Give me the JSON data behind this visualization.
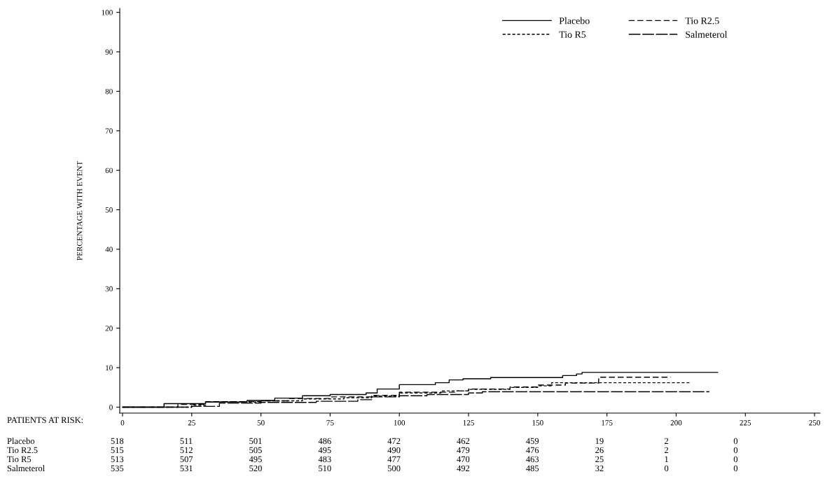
{
  "chart_data": {
    "type": "step",
    "ylabel": "PERCENTAGE WITH EVENT",
    "xlim": [
      -1,
      252
    ],
    "xticks": [
      0,
      25,
      50,
      75,
      100,
      125,
      150,
      175,
      200,
      225,
      250
    ],
    "ylim": [
      -1.5,
      101
    ],
    "yticks": [
      0,
      10,
      20,
      30,
      40,
      50,
      60,
      70,
      80,
      90,
      100
    ],
    "grid": false,
    "legend": "top right",
    "marker": "none",
    "series": [
      {
        "name": "Placebo",
        "color": "#000000",
        "line_style": "solid",
        "x": [
          0,
          15,
          30,
          45,
          55,
          65,
          75,
          88,
          92,
          100,
          113,
          118,
          123,
          133,
          159,
          164,
          166,
          215
        ],
        "values": [
          0,
          0.9,
          1.3,
          1.7,
          2.3,
          2.9,
          3.2,
          3.6,
          4.6,
          5.7,
          6.2,
          6.9,
          7.2,
          7.5,
          8.0,
          8.4,
          8.8,
          8.8
        ]
      },
      {
        "name": "Tio R2.5",
        "color": "#000000",
        "line_style": "dashed",
        "x": [
          0,
          20,
          30,
          50,
          60,
          75,
          90,
          100,
          120,
          125,
          140,
          150,
          160,
          172,
          198
        ],
        "values": [
          0,
          0.7,
          1.4,
          1.6,
          2.2,
          2.6,
          3.0,
          3.8,
          4.1,
          4.6,
          5.1,
          5.6,
          6.1,
          7.6,
          7.6
        ]
      },
      {
        "name": "Tio R5",
        "color": "#000000",
        "line_style": "dotted",
        "x": [
          0,
          25,
          30,
          50,
          65,
          80,
          90,
          100,
          115,
          125,
          140,
          150,
          155,
          205
        ],
        "values": [
          0,
          0.5,
          1.3,
          1.6,
          2.1,
          2.4,
          2.8,
          3.6,
          4.1,
          4.5,
          5.0,
          5.4,
          6.2,
          6.2
        ]
      },
      {
        "name": "Salmeterol",
        "color": "#000000",
        "line_style": "long_dashed",
        "x": [
          0,
          25,
          35,
          50,
          70,
          85,
          90,
          100,
          110,
          125,
          130,
          212
        ],
        "values": [
          0,
          0.2,
          1.0,
          1.2,
          1.5,
          1.9,
          2.6,
          2.9,
          3.2,
          3.6,
          3.9,
          3.9
        ]
      }
    ],
    "annotations": [
      "PATIENTS AT RISK:",
      "Placebo",
      "518",
      "511",
      "501",
      "486",
      "472",
      "462",
      "459",
      "19",
      "2",
      "0",
      "Tio R2.5",
      "515",
      "512",
      "505",
      "495",
      "490",
      "479",
      "476",
      "26",
      "2",
      "0",
      "Tio R5",
      "513",
      "507",
      "495",
      "483",
      "477",
      "470",
      "463",
      "25",
      "1",
      "0",
      "Salmeterol",
      "535",
      "531",
      "520",
      "510",
      "500",
      "492",
      "485",
      "32",
      "0",
      "0"
    ]
  }
}
